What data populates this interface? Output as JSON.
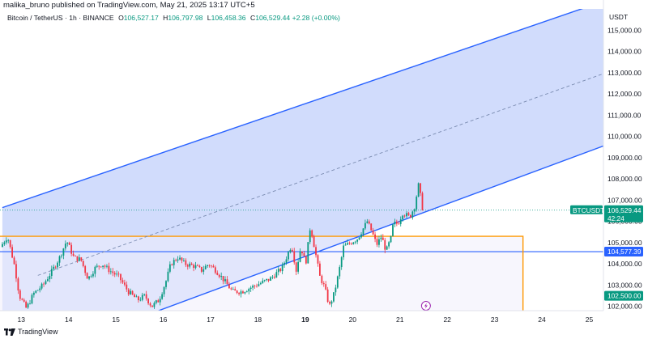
{
  "header": {
    "published": "malika_bruno published on TradingView.com, May 21, 2025 13:17 UTC+5",
    "symbol": "Bitcoin / TetherUS · 1h · BINANCE",
    "o_label": "O",
    "o_value": "106,527.17",
    "h_label": "H",
    "h_value": "106,797.98",
    "l_label": "L",
    "l_value": "106,458.36",
    "c_label": "C",
    "c_value": "106,529.44",
    "change": "+2.28 (+0.00%)"
  },
  "footer": {
    "brand": "TradingView"
  },
  "colors": {
    "up": "#089981",
    "down": "#f23645",
    "channel": "#2962ff",
    "fill": "#c9d6fb",
    "box_line": "#ff9800",
    "box_fill": "#f1eefc",
    "dashed": "#7a8bb0"
  },
  "chart_data": {
    "type": "candlestick",
    "symbol": "BTCUSDT",
    "currency": "USDT",
    "ylim": [
      101800,
      116000
    ],
    "y_ticks": [
      "102,000.00",
      "103,000.00",
      "104,000.00",
      "105,000.00",
      "106,000.00",
      "107,000.00",
      "108,000.00",
      "109,000.00",
      "110,000.00",
      "111,000.00",
      "112,000.00",
      "113,000.00",
      "114,000.00",
      "115,000.00"
    ],
    "y_tick_values": [
      102000,
      103000,
      104000,
      105000,
      106000,
      107000,
      108000,
      109000,
      110000,
      111000,
      112000,
      113000,
      114000,
      115000
    ],
    "x_ticks": [
      "13",
      "14",
      "15",
      "16",
      "17",
      "18",
      "19",
      "20",
      "21",
      "22",
      "23",
      "24",
      "25"
    ],
    "x_tick_values": [
      13,
      14,
      15,
      16,
      17,
      18,
      19,
      20,
      21,
      22,
      23,
      24,
      25
    ],
    "xlim": [
      12.55,
      25.3
    ],
    "bold_x_tick": "19",
    "last_price": {
      "symbol": "BTCUSDT",
      "price": "106,529.44",
      "countdown": "42:24",
      "value": 106529.44
    },
    "level_lines": [
      {
        "label": "104,577.39",
        "value": 104577.39
      },
      {
        "label": "102,500.00",
        "value": 102500.0
      }
    ],
    "channel": {
      "upper": {
        "start": [
          12.6,
          106650
        ],
        "end": [
          24.9,
          116050
        ]
      },
      "lower": {
        "start": [
          15.9,
          101800
        ],
        "end": [
          25.3,
          109550
        ]
      },
      "median_dashed": true
    },
    "range_box": {
      "x_start": 12.55,
      "x_end": 23.6,
      "top": 105300,
      "bottom": 101800
    },
    "path": [
      [
        12.6,
        104800
      ],
      [
        12.75,
        105300
      ],
      [
        12.9,
        103900
      ],
      [
        13.0,
        102500
      ],
      [
        13.15,
        101900
      ],
      [
        13.3,
        102600
      ],
      [
        13.5,
        103000
      ],
      [
        13.7,
        103700
      ],
      [
        13.85,
        104300
      ],
      [
        14.0,
        105100
      ],
      [
        14.15,
        104300
      ],
      [
        14.3,
        104200
      ],
      [
        14.45,
        103300
      ],
      [
        14.6,
        103800
      ],
      [
        14.75,
        104000
      ],
      [
        14.9,
        103700
      ],
      [
        15.1,
        103400
      ],
      [
        15.3,
        102700
      ],
      [
        15.5,
        102300
      ],
      [
        15.65,
        102500
      ],
      [
        15.8,
        102000
      ],
      [
        15.95,
        102300
      ],
      [
        16.1,
        103200
      ],
      [
        16.2,
        104000
      ],
      [
        16.35,
        104300
      ],
      [
        16.5,
        104000
      ],
      [
        16.7,
        103900
      ],
      [
        16.85,
        103700
      ],
      [
        17.0,
        104000
      ],
      [
        17.15,
        103700
      ],
      [
        17.3,
        103300
      ],
      [
        17.5,
        102700
      ],
      [
        17.7,
        102700
      ],
      [
        17.9,
        102900
      ],
      [
        18.1,
        103100
      ],
      [
        18.3,
        103300
      ],
      [
        18.55,
        103800
      ],
      [
        18.75,
        104900
      ],
      [
        18.85,
        103700
      ],
      [
        18.95,
        104800
      ],
      [
        19.05,
        104000
      ],
      [
        19.15,
        105800
      ],
      [
        19.25,
        104600
      ],
      [
        19.35,
        103400
      ],
      [
        19.45,
        102900
      ],
      [
        19.55,
        102000
      ],
      [
        19.65,
        102600
      ],
      [
        19.75,
        103600
      ],
      [
        19.85,
        104800
      ],
      [
        20.0,
        105000
      ],
      [
        20.15,
        105200
      ],
      [
        20.25,
        105600
      ],
      [
        20.35,
        106000
      ],
      [
        20.45,
        105500
      ],
      [
        20.55,
        104900
      ],
      [
        20.65,
        105300
      ],
      [
        20.75,
        104600
      ],
      [
        20.85,
        105200
      ],
      [
        20.9,
        105900
      ],
      [
        21.0,
        105900
      ],
      [
        21.1,
        106400
      ],
      [
        21.25,
        106200
      ],
      [
        21.35,
        106700
      ],
      [
        21.45,
        107900
      ],
      [
        21.5,
        106529
      ]
    ]
  }
}
